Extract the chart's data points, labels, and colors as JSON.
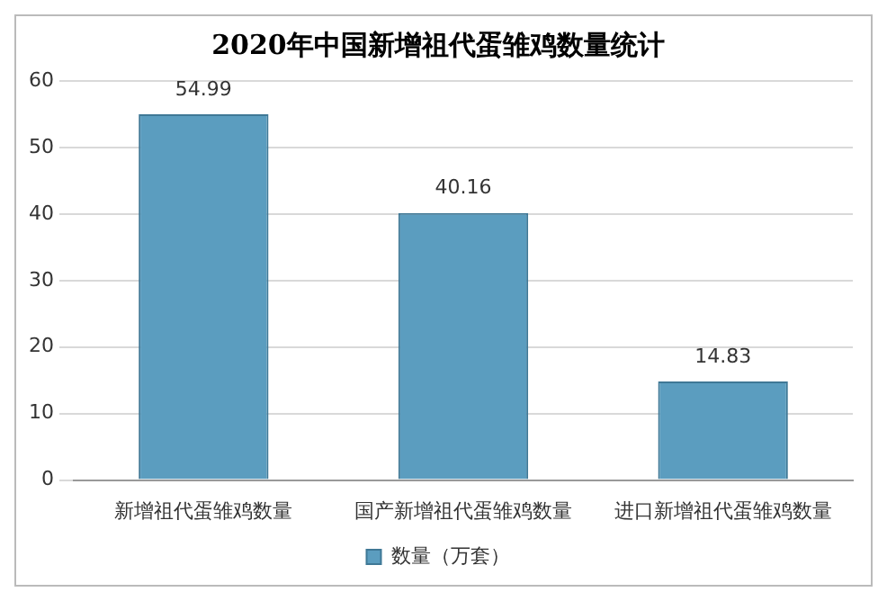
{
  "chart_data": {
    "type": "bar",
    "title": "2020年中国新增祖代蛋雏鸡数量统计",
    "categories": [
      "新增祖代蛋雏鸡数量",
      "国产新增祖代蛋雏鸡数量",
      "进口新增祖代蛋雏鸡数量"
    ],
    "series": [
      {
        "name": "数量（万套）",
        "color": "#5b9dbf",
        "values": [
          54.99,
          40.16,
          14.83
        ]
      }
    ],
    "ylim": [
      0,
      60
    ],
    "yticks": [
      0,
      10,
      20,
      30,
      40,
      50,
      60
    ],
    "grid": "y",
    "legend": "bottom",
    "data_labels": true
  }
}
